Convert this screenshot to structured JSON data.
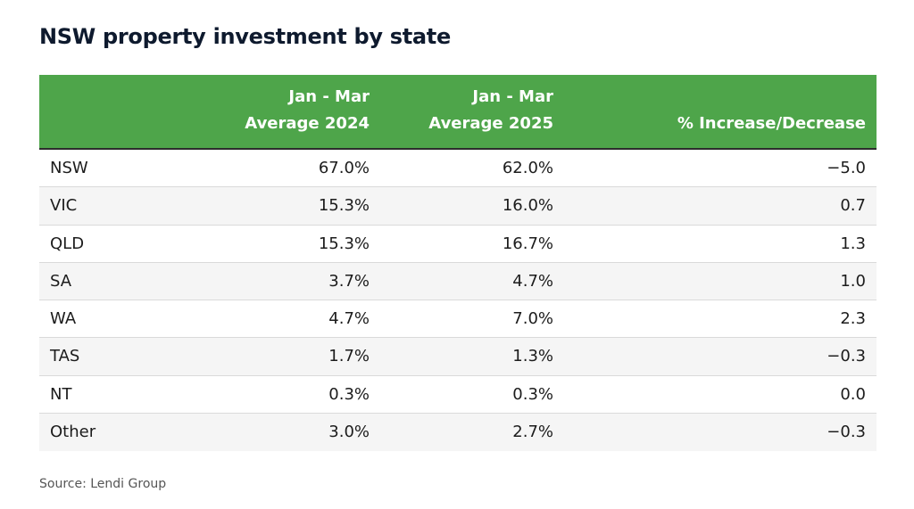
{
  "title": "NSW property investment by state",
  "source": "Source: Lendi Group",
  "colors": {
    "header_bg": "#4ea54a",
    "header_text": "#ffffff",
    "row_shade": "#f5f5f5"
  },
  "chart_data": {
    "type": "table",
    "title": "NSW property investment by state",
    "columns": [
      "",
      [
        "Jan - Mar",
        "Average 2024"
      ],
      [
        "Jan - Mar",
        "Average 2025"
      ],
      "% Increase/Decrease"
    ],
    "rows": [
      [
        "NSW",
        "67.0%",
        "62.0%",
        "−5.0"
      ],
      [
        "VIC",
        "15.3%",
        "16.0%",
        "0.7"
      ],
      [
        "QLD",
        "15.3%",
        "16.7%",
        "1.3"
      ],
      [
        "SA",
        "3.7%",
        "4.7%",
        "1.0"
      ],
      [
        "WA",
        "4.7%",
        "7.0%",
        "2.3"
      ],
      [
        "TAS",
        "1.7%",
        "1.3%",
        "−0.3"
      ],
      [
        "NT",
        "0.3%",
        "0.3%",
        "0.0"
      ],
      [
        "Other",
        "3.0%",
        "2.7%",
        "−0.3"
      ]
    ]
  }
}
